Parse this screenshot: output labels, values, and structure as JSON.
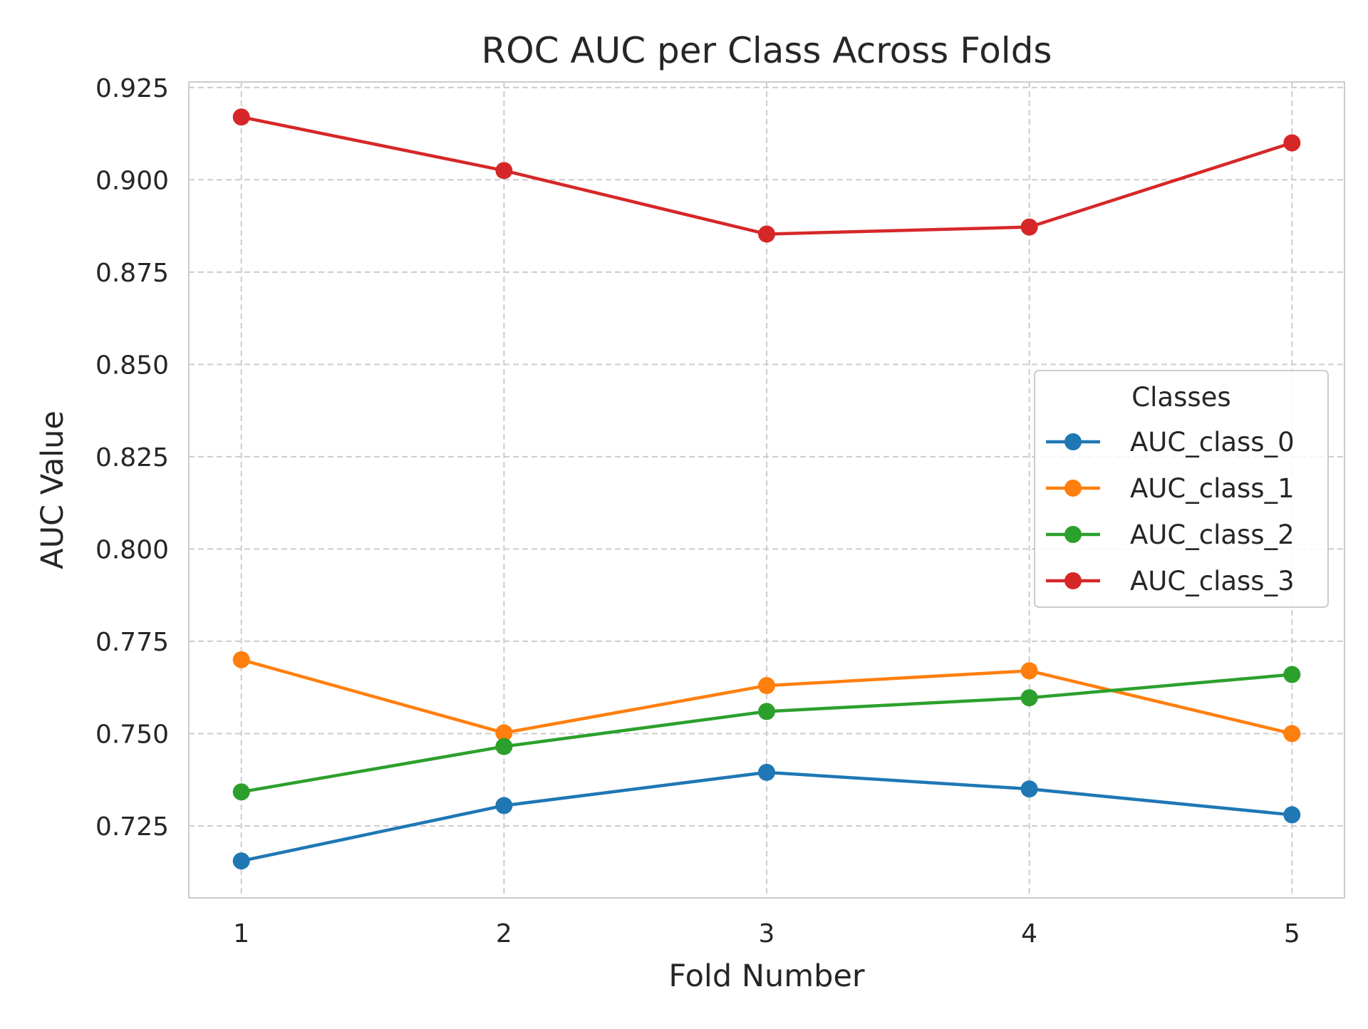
{
  "chart_data": {
    "type": "line",
    "title": "ROC AUC per Class Across Folds",
    "xlabel": "Fold Number",
    "ylabel": "AUC Value",
    "x": [
      1,
      2,
      3,
      4,
      5
    ],
    "xlim": [
      0.8,
      5.2
    ],
    "ylim": [
      0.7055,
      0.9265
    ],
    "yticks": [
      0.725,
      0.75,
      0.775,
      0.8,
      0.825,
      0.85,
      0.875,
      0.9,
      0.925
    ],
    "ytick_labels": [
      "0.725",
      "0.750",
      "0.775",
      "0.800",
      "0.825",
      "0.850",
      "0.875",
      "0.900",
      "0.925"
    ],
    "xtick_labels": [
      "1",
      "2",
      "3",
      "4",
      "5"
    ],
    "grid": true,
    "legend": {
      "title": "Classes",
      "placement": "center-right"
    },
    "series": [
      {
        "name": "AUC_class_0",
        "color": "#1f77b4",
        "values": [
          0.7155,
          0.7305,
          0.7395,
          0.735,
          0.728
        ]
      },
      {
        "name": "AUC_class_1",
        "color": "#ff7f0e",
        "values": [
          0.77,
          0.7502,
          0.763,
          0.767,
          0.75
        ]
      },
      {
        "name": "AUC_class_2",
        "color": "#2ca02c",
        "values": [
          0.7342,
          0.7465,
          0.756,
          0.7597,
          0.766
        ]
      },
      {
        "name": "AUC_class_3",
        "color": "#d62728",
        "values": [
          0.917,
          0.9025,
          0.8853,
          0.8872,
          0.91
        ]
      }
    ]
  }
}
